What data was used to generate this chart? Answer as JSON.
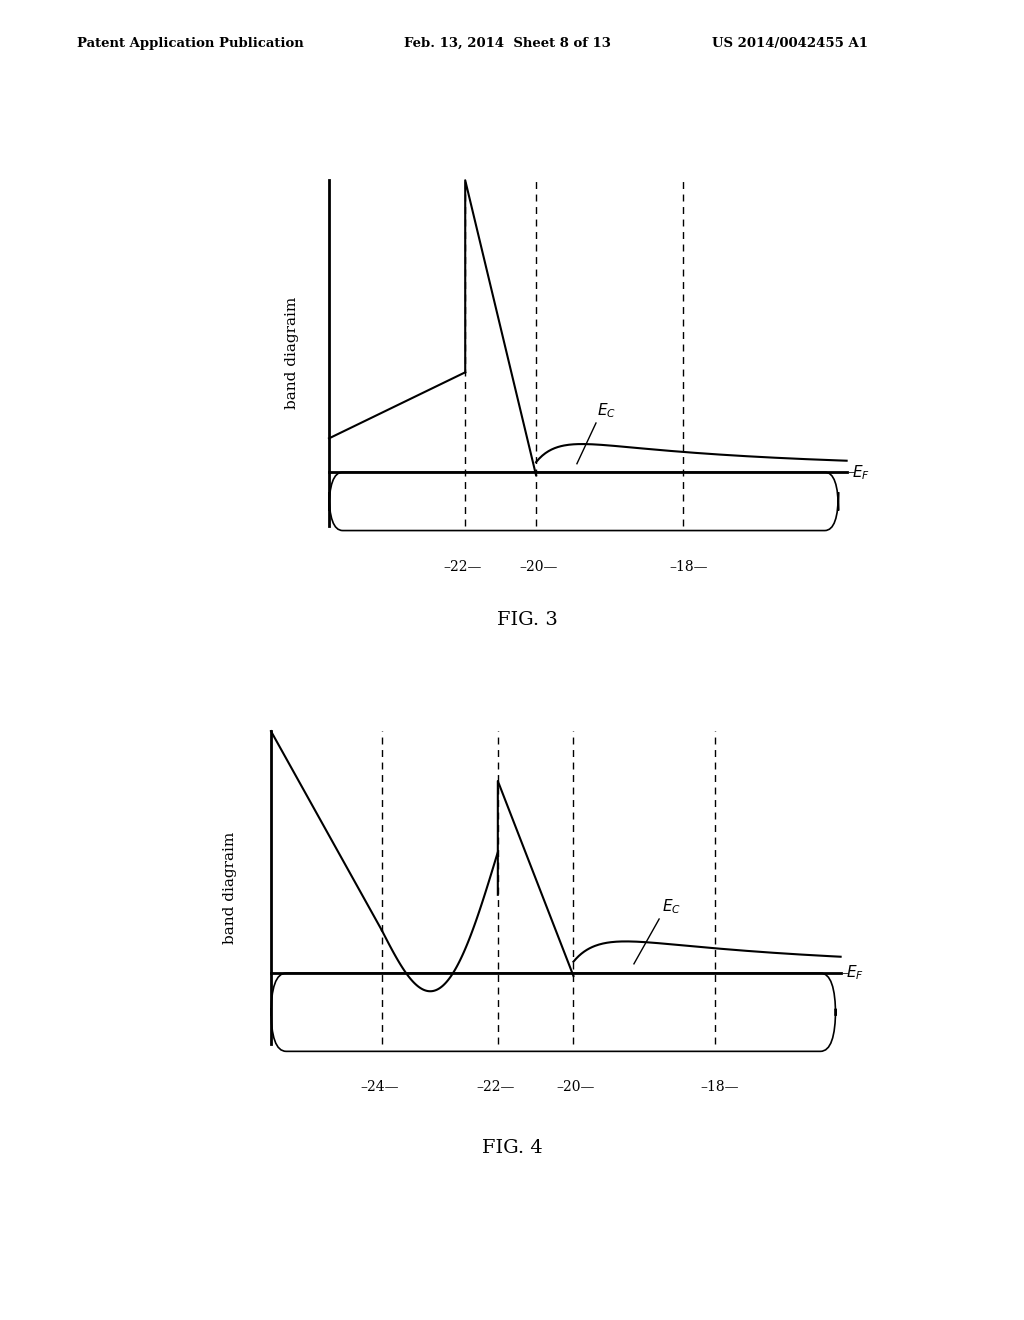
{
  "header_left": "Patent Application Publication",
  "header_mid": "Feb. 13, 2014  Sheet 8 of 13",
  "header_right": "US 2014/0042455 A1",
  "fig3_title": "FIG. 3",
  "fig4_title": "FIG. 4",
  "ylabel": "band diagraim",
  "bg_color": "#ffffff"
}
